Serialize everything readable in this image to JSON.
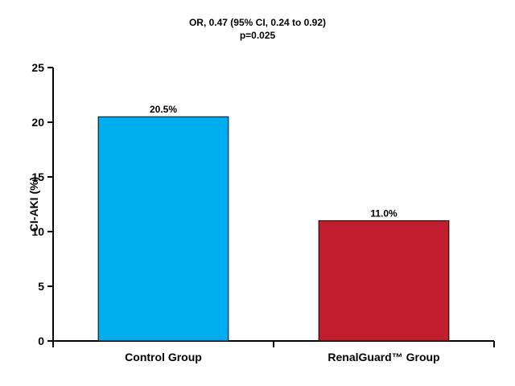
{
  "chart_data": {
    "type": "bar",
    "title_lines": [
      "OR, 0.47 (95% CI, 0.24 to 0.92)",
      "p=0.025"
    ],
    "ylabel": "CI-AKI (%)",
    "xlabel": "",
    "categories": [
      "Control Group",
      "RenalGuard™ Group"
    ],
    "values": [
      20.5,
      11.0
    ],
    "value_labels": [
      "20.5%",
      "11.0%"
    ],
    "colors": [
      "#00aeef",
      "#c01e2e"
    ],
    "ylim": [
      0,
      25
    ],
    "yticks": [
      0,
      5,
      10,
      15,
      20,
      25
    ],
    "grid": false
  }
}
